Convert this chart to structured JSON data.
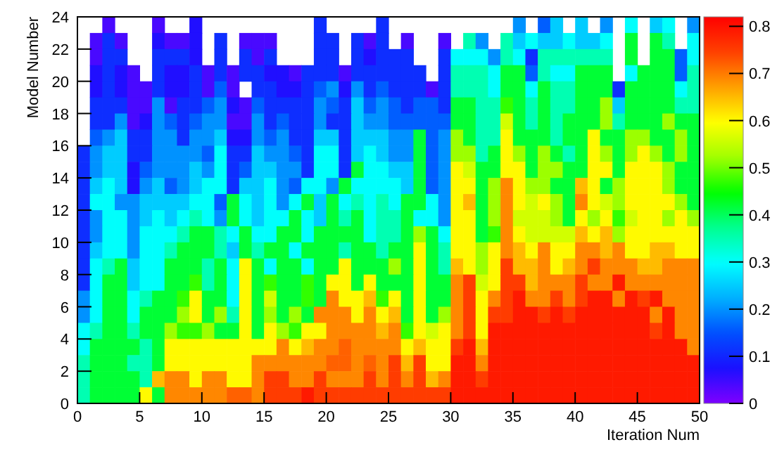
{
  "chart_data": {
    "type": "heatmap",
    "xlabel": "Iteration Num",
    "ylabel": "Model Number",
    "x": [
      0.5,
      1.5,
      2.5,
      3.5,
      4.5,
      5.5,
      6.5,
      7.5,
      8.5,
      9.5,
      10.5,
      11.5,
      12.5,
      13.5,
      14.5,
      15.5,
      16.5,
      17.5,
      18.5,
      19.5,
      20.5,
      21.5,
      22.5,
      23.5,
      24.5,
      25.5,
      26.5,
      27.5,
      28.5,
      29.5,
      30.5,
      31.5,
      32.5,
      33.5,
      34.5,
      35.5,
      36.5,
      37.5,
      38.5,
      39.5,
      40.5,
      41.5,
      42.5,
      43.5,
      44.5,
      45.5,
      46.5,
      47.5,
      48.5,
      49.5
    ],
    "xlim": [
      0,
      50
    ],
    "xticks": [
      0,
      5,
      10,
      15,
      20,
      25,
      30,
      35,
      40,
      45,
      50
    ],
    "ylim": [
      0,
      24
    ],
    "yticks": [
      0,
      2,
      4,
      6,
      8,
      10,
      12,
      14,
      16,
      18,
      20,
      22,
      24
    ],
    "clim": [
      0,
      0.82
    ],
    "cticks": [
      0,
      0.1,
      0.2,
      0.3,
      0.4,
      0.5,
      0.6,
      0.7,
      0.8
    ],
    "cells": [
      [
        null,
        null,
        0.04,
        null,
        null,
        null,
        0.04,
        null,
        null,
        0.07,
        null,
        null,
        null,
        null,
        null,
        null,
        null,
        null,
        null,
        0.11,
        null,
        null,
        null,
        null,
        0.11,
        null,
        null,
        null,
        null,
        null,
        null,
        null,
        null,
        null,
        null,
        0.2,
        null,
        0.16,
        0.25,
        null,
        0.25,
        null,
        0.2,
        null,
        0.3,
        null,
        0.25,
        0.3,
        null,
        0.2
      ],
      [
        null,
        0.04,
        0.11,
        0.04,
        null,
        null,
        0.07,
        0.04,
        0.04,
        0.07,
        null,
        0.11,
        null,
        0.04,
        0.04,
        0.04,
        null,
        null,
        null,
        0.11,
        0.11,
        null,
        0.11,
        0.04,
        0.11,
        null,
        0.04,
        null,
        null,
        0.04,
        null,
        0.35,
        0.2,
        null,
        0.35,
        0.25,
        0.3,
        0.25,
        0.25,
        0.3,
        0.25,
        0.25,
        0.3,
        null,
        0.42,
        null,
        0.42,
        0.35,
        null,
        0.3
      ],
      [
        null,
        0.04,
        0.11,
        0.11,
        null,
        null,
        0.11,
        0.11,
        0.11,
        0.07,
        null,
        0.11,
        null,
        0.11,
        0.04,
        0.11,
        null,
        null,
        null,
        0.11,
        0.11,
        null,
        0.11,
        0.07,
        0.11,
        0.11,
        0.11,
        null,
        null,
        0.11,
        0.3,
        0.3,
        0.3,
        0.2,
        0.35,
        0.3,
        0.11,
        0.35,
        0.35,
        0.35,
        0.35,
        0.35,
        0.35,
        null,
        0.42,
        null,
        0.42,
        0.42,
        0.16,
        0.3
      ],
      [
        null,
        0.07,
        0.11,
        0.07,
        0.04,
        null,
        0.11,
        0.07,
        0.07,
        0.11,
        0.04,
        0.11,
        0.04,
        0.11,
        0.11,
        0.07,
        0.07,
        0.04,
        0.11,
        0.11,
        0.11,
        0.04,
        0.11,
        0.11,
        0.11,
        0.11,
        0.11,
        0.11,
        null,
        0.11,
        0.35,
        0.35,
        0.35,
        0.3,
        0.42,
        0.42,
        0.16,
        0.35,
        0.3,
        0.3,
        0.42,
        0.42,
        0.42,
        null,
        0.3,
        0.42,
        0.42,
        0.42,
        0.16,
        0.35
      ],
      [
        null,
        0.07,
        0.11,
        0.07,
        0.04,
        0.04,
        0.11,
        0.07,
        0.07,
        0.11,
        0.04,
        0.16,
        0.04,
        null,
        0.11,
        0.11,
        0.07,
        0.07,
        0.11,
        0.16,
        0.2,
        0.07,
        0.2,
        0.11,
        0.16,
        0.11,
        0.11,
        0.11,
        0.04,
        0.11,
        0.35,
        0.35,
        0.35,
        0.3,
        0.42,
        0.42,
        0.3,
        0.42,
        0.35,
        0.35,
        0.42,
        0.42,
        0.42,
        0.11,
        0.42,
        0.42,
        0.42,
        0.42,
        0.3,
        0.35
      ],
      [
        null,
        0.11,
        0.11,
        0.11,
        0.04,
        0.04,
        0.2,
        0.04,
        0.11,
        0.11,
        0.16,
        0.2,
        0.07,
        0.04,
        0.16,
        0.11,
        0.11,
        0.11,
        0.11,
        0.2,
        0.16,
        0.11,
        0.25,
        0.16,
        0.2,
        0.16,
        0.11,
        0.16,
        0.16,
        0.11,
        0.42,
        0.42,
        0.35,
        0.35,
        0.47,
        0.42,
        0.35,
        0.42,
        0.35,
        0.35,
        0.42,
        0.42,
        0.52,
        0.25,
        0.42,
        0.42,
        0.42,
        0.42,
        0.35,
        0.35
      ],
      [
        null,
        0.11,
        0.11,
        0.2,
        0.04,
        0.07,
        0.2,
        0.16,
        0.11,
        0.16,
        0.2,
        0.2,
        0.04,
        0.04,
        0.2,
        0.11,
        0.16,
        0.11,
        0.11,
        0.2,
        0.11,
        0.11,
        0.25,
        0.2,
        0.2,
        0.16,
        0.16,
        0.16,
        0.16,
        0.16,
        0.42,
        0.42,
        0.35,
        0.35,
        0.56,
        0.42,
        0.35,
        0.42,
        0.35,
        0.42,
        0.42,
        0.42,
        0.52,
        0.35,
        0.42,
        0.42,
        0.42,
        0.52,
        0.42,
        0.42
      ],
      [
        null,
        0.16,
        0.2,
        0.25,
        0.11,
        0.11,
        0.2,
        0.2,
        0.11,
        0.2,
        0.2,
        0.25,
        0.07,
        0.07,
        0.2,
        0.16,
        0.2,
        0.11,
        0.11,
        0.25,
        0.25,
        0.11,
        0.25,
        0.25,
        0.25,
        0.2,
        0.2,
        0.42,
        0.16,
        0.2,
        0.52,
        0.42,
        0.35,
        0.35,
        0.6,
        0.42,
        0.42,
        0.42,
        0.35,
        0.42,
        0.42,
        0.6,
        0.42,
        0.42,
        0.52,
        0.52,
        0.42,
        0.42,
        0.52,
        0.42
      ],
      [
        0.11,
        0.2,
        0.25,
        0.25,
        0.11,
        0.11,
        0.2,
        0.2,
        0.2,
        0.2,
        0.16,
        0.3,
        0.11,
        0.11,
        0.25,
        0.2,
        0.2,
        0.16,
        0.11,
        0.3,
        0.3,
        0.11,
        0.25,
        0.3,
        0.25,
        0.2,
        0.2,
        0.42,
        0.16,
        0.2,
        0.52,
        0.52,
        0.35,
        0.42,
        0.6,
        0.52,
        0.42,
        0.52,
        0.42,
        0.35,
        0.42,
        0.6,
        0.52,
        0.42,
        0.52,
        0.6,
        0.52,
        0.42,
        0.52,
        0.42
      ],
      [
        0.11,
        0.2,
        0.25,
        0.25,
        0.07,
        0.16,
        0.2,
        0.2,
        0.2,
        0.25,
        0.2,
        0.3,
        0.11,
        0.16,
        0.25,
        0.25,
        0.2,
        0.2,
        0.11,
        0.3,
        0.3,
        0.11,
        0.42,
        0.3,
        0.3,
        0.25,
        0.25,
        0.42,
        0.16,
        0.2,
        0.6,
        0.56,
        0.42,
        0.42,
        0.6,
        0.6,
        0.42,
        0.52,
        0.52,
        0.42,
        0.42,
        0.6,
        0.6,
        0.42,
        0.6,
        0.6,
        0.6,
        0.52,
        0.42,
        0.42
      ],
      [
        0.11,
        0.25,
        0.3,
        0.25,
        0.07,
        0.2,
        0.25,
        0.16,
        0.2,
        0.25,
        0.3,
        0.3,
        0.11,
        0.25,
        0.25,
        0.3,
        0.2,
        0.16,
        0.3,
        0.3,
        0.2,
        0.42,
        0.3,
        0.3,
        0.3,
        0.3,
        0.25,
        0.42,
        0.16,
        0.2,
        0.6,
        0.6,
        0.42,
        0.52,
        0.69,
        0.6,
        0.52,
        0.52,
        0.42,
        0.42,
        0.65,
        0.6,
        0.42,
        0.52,
        0.6,
        0.6,
        0.6,
        0.52,
        0.42,
        0.42
      ],
      [
        0.11,
        0.3,
        0.3,
        0.2,
        0.2,
        0.25,
        0.25,
        0.25,
        0.25,
        0.3,
        0.3,
        0.16,
        0.42,
        0.3,
        0.25,
        0.3,
        0.2,
        0.3,
        0.42,
        0.25,
        0.42,
        0.3,
        0.35,
        0.3,
        0.35,
        0.3,
        0.42,
        0.42,
        0.3,
        0.2,
        0.6,
        0.65,
        0.42,
        0.52,
        0.69,
        0.6,
        0.56,
        0.6,
        0.52,
        0.42,
        0.69,
        0.6,
        0.56,
        0.52,
        0.6,
        0.6,
        0.6,
        0.6,
        0.52,
        0.42
      ],
      [
        0.11,
        0.2,
        0.3,
        0.3,
        0.2,
        0.25,
        0.3,
        0.25,
        0.3,
        0.35,
        0.3,
        0.2,
        0.42,
        0.3,
        0.25,
        0.3,
        0.3,
        0.42,
        0.3,
        0.25,
        0.42,
        0.35,
        0.42,
        0.3,
        0.35,
        0.35,
        0.42,
        0.3,
        0.3,
        0.2,
        0.6,
        0.6,
        0.42,
        0.52,
        0.69,
        0.56,
        0.56,
        0.56,
        0.52,
        0.42,
        0.6,
        0.52,
        0.6,
        0.47,
        0.56,
        0.6,
        0.6,
        0.52,
        0.6,
        0.52
      ],
      [
        0.11,
        0.2,
        0.3,
        0.3,
        0.2,
        0.3,
        0.3,
        0.3,
        0.35,
        0.42,
        0.42,
        0.35,
        0.3,
        0.42,
        0.3,
        0.3,
        0.42,
        0.42,
        0.3,
        0.42,
        0.42,
        0.42,
        0.42,
        0.3,
        0.35,
        0.35,
        0.42,
        0.52,
        0.42,
        0.3,
        0.6,
        0.6,
        0.42,
        0.47,
        0.69,
        0.6,
        0.56,
        0.56,
        0.56,
        0.56,
        0.65,
        0.6,
        0.65,
        0.52,
        0.6,
        0.6,
        0.6,
        0.6,
        0.6,
        0.6
      ],
      [
        0.11,
        0.25,
        0.3,
        0.3,
        0.2,
        0.3,
        0.3,
        0.35,
        0.42,
        0.42,
        0.42,
        0.35,
        0.25,
        0.42,
        0.35,
        0.42,
        0.42,
        0.3,
        0.42,
        0.42,
        0.42,
        0.35,
        0.42,
        0.42,
        0.35,
        0.42,
        0.42,
        0.6,
        0.42,
        0.35,
        0.6,
        0.6,
        0.52,
        0.6,
        0.69,
        0.65,
        0.6,
        0.69,
        0.6,
        0.6,
        0.69,
        0.69,
        0.65,
        0.69,
        0.6,
        0.6,
        0.65,
        0.65,
        0.6,
        0.6
      ],
      [
        0.11,
        0.3,
        0.35,
        0.42,
        0.25,
        0.3,
        0.3,
        0.42,
        0.42,
        0.42,
        0.35,
        0.42,
        0.3,
        0.6,
        0.42,
        0.3,
        0.42,
        0.42,
        0.3,
        0.42,
        0.42,
        0.6,
        0.42,
        0.42,
        0.42,
        0.52,
        0.42,
        0.6,
        0.42,
        0.35,
        0.65,
        0.6,
        0.52,
        0.6,
        0.75,
        0.65,
        0.65,
        0.69,
        0.6,
        0.65,
        0.69,
        0.75,
        0.69,
        0.69,
        0.69,
        0.65,
        0.65,
        0.69,
        0.69,
        0.69
      ],
      [
        0.11,
        0.3,
        0.42,
        0.42,
        0.25,
        0.3,
        0.3,
        0.42,
        0.42,
        0.47,
        0.35,
        0.42,
        0.3,
        0.6,
        0.42,
        0.47,
        0.42,
        0.42,
        0.47,
        0.42,
        0.6,
        0.6,
        0.42,
        0.6,
        0.42,
        0.42,
        0.42,
        0.6,
        0.42,
        0.42,
        0.69,
        0.75,
        0.56,
        0.6,
        0.75,
        0.75,
        0.65,
        0.69,
        0.69,
        0.69,
        0.75,
        0.69,
        0.69,
        0.79,
        0.69,
        0.69,
        0.69,
        0.69,
        0.69,
        0.69
      ],
      [
        0.2,
        0.3,
        0.42,
        0.42,
        0.3,
        0.35,
        0.42,
        0.42,
        0.47,
        0.6,
        0.42,
        0.42,
        0.3,
        0.6,
        0.42,
        0.56,
        0.42,
        0.42,
        0.47,
        0.42,
        0.69,
        0.6,
        0.6,
        0.65,
        0.47,
        0.6,
        0.42,
        0.6,
        0.42,
        0.42,
        0.69,
        0.75,
        0.6,
        0.69,
        0.75,
        0.79,
        0.69,
        0.69,
        0.75,
        0.69,
        0.75,
        0.79,
        0.79,
        0.69,
        0.79,
        0.75,
        0.79,
        0.69,
        0.69,
        0.69
      ],
      [
        0.2,
        0.3,
        0.42,
        0.42,
        0.3,
        0.42,
        0.42,
        0.42,
        0.52,
        0.6,
        0.42,
        0.52,
        0.35,
        0.6,
        0.42,
        0.52,
        0.42,
        0.52,
        0.42,
        0.69,
        0.69,
        0.69,
        0.6,
        0.69,
        0.6,
        0.65,
        0.42,
        0.6,
        0.42,
        0.52,
        0.69,
        0.75,
        0.6,
        0.75,
        0.75,
        0.79,
        0.79,
        0.75,
        0.79,
        0.75,
        0.79,
        0.79,
        0.79,
        0.79,
        0.79,
        0.79,
        0.69,
        0.79,
        0.69,
        0.69
      ],
      [
        0.3,
        0.35,
        0.42,
        0.42,
        0.35,
        0.42,
        0.42,
        0.52,
        0.47,
        0.47,
        0.52,
        0.42,
        0.42,
        0.6,
        0.42,
        0.6,
        0.52,
        0.47,
        0.6,
        0.6,
        0.69,
        0.69,
        0.69,
        0.69,
        0.65,
        0.69,
        0.47,
        0.6,
        0.56,
        0.6,
        0.69,
        0.75,
        0.6,
        0.79,
        0.79,
        0.79,
        0.79,
        0.79,
        0.79,
        0.79,
        0.79,
        0.79,
        0.79,
        0.79,
        0.79,
        0.79,
        0.75,
        0.79,
        0.69,
        0.69
      ],
      [
        0.3,
        0.42,
        0.42,
        0.42,
        0.42,
        0.35,
        0.42,
        0.6,
        0.6,
        0.6,
        0.6,
        0.6,
        0.6,
        0.6,
        0.6,
        0.6,
        0.69,
        0.6,
        0.65,
        0.69,
        0.69,
        0.72,
        0.69,
        0.69,
        0.69,
        0.69,
        0.6,
        0.65,
        0.6,
        0.6,
        0.75,
        0.79,
        0.65,
        0.79,
        0.79,
        0.79,
        0.79,
        0.79,
        0.79,
        0.79,
        0.79,
        0.79,
        0.79,
        0.79,
        0.79,
        0.79,
        0.79,
        0.79,
        0.79,
        0.69
      ],
      [
        0.35,
        0.42,
        0.42,
        0.42,
        0.35,
        0.35,
        0.42,
        0.6,
        0.6,
        0.6,
        0.6,
        0.6,
        0.6,
        0.6,
        0.69,
        0.69,
        0.69,
        0.69,
        0.69,
        0.69,
        0.72,
        0.72,
        0.69,
        0.72,
        0.69,
        0.75,
        0.65,
        0.75,
        0.6,
        0.6,
        0.79,
        0.79,
        0.69,
        0.79,
        0.79,
        0.79,
        0.79,
        0.79,
        0.79,
        0.79,
        0.79,
        0.79,
        0.79,
        0.79,
        0.79,
        0.79,
        0.79,
        0.79,
        0.79,
        0.79
      ],
      [
        0.35,
        0.42,
        0.42,
        0.42,
        0.42,
        0.35,
        0.65,
        0.69,
        0.69,
        0.6,
        0.69,
        0.69,
        0.6,
        0.6,
        0.69,
        0.75,
        0.75,
        0.69,
        0.69,
        0.75,
        0.69,
        0.69,
        0.69,
        0.75,
        0.69,
        0.75,
        0.69,
        0.75,
        0.65,
        0.69,
        0.79,
        0.79,
        0.75,
        0.79,
        0.79,
        0.79,
        0.79,
        0.79,
        0.79,
        0.79,
        0.79,
        0.79,
        0.79,
        0.79,
        0.79,
        0.79,
        0.79,
        0.79,
        0.79,
        0.79
      ],
      [
        0.35,
        0.42,
        0.42,
        0.42,
        0.42,
        0.6,
        0.42,
        0.69,
        0.69,
        0.69,
        0.69,
        0.69,
        0.72,
        0.72,
        0.69,
        0.75,
        0.75,
        0.75,
        0.79,
        0.75,
        0.75,
        0.75,
        0.75,
        0.75,
        0.75,
        0.75,
        0.75,
        0.75,
        0.75,
        0.75,
        0.79,
        0.79,
        0.79,
        0.79,
        0.79,
        0.79,
        0.79,
        0.79,
        0.79,
        0.79,
        0.79,
        0.79,
        0.79,
        0.79,
        0.79,
        0.79,
        0.79,
        0.79,
        0.79,
        0.79
      ]
    ]
  }
}
